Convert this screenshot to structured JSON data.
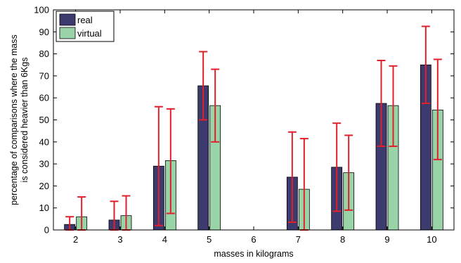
{
  "chart_data": {
    "type": "bar",
    "title": "",
    "xlabel": "masses in kilograms",
    "ylabel_lines": [
      "percentage of comparisons where the mass",
      "is considered heavier than 6Kgs"
    ],
    "categories": [
      "2",
      "3",
      "4",
      "5",
      "6",
      "7",
      "8",
      "9",
      "10"
    ],
    "ylim": [
      0,
      100
    ],
    "yticks": [
      0,
      10,
      20,
      30,
      40,
      50,
      60,
      70,
      80,
      90,
      100
    ],
    "grid": false,
    "legend_position": "top-left",
    "series": [
      {
        "name": "real",
        "color": "#3d3a6e",
        "values": [
          2.5,
          4.5,
          29,
          65.5,
          null,
          24,
          28.5,
          57.5,
          75
        ],
        "error_low": [
          0,
          0,
          2,
          50,
          null,
          3.5,
          8.5,
          38,
          57.5
        ],
        "error_high": [
          6,
          13,
          56,
          81,
          null,
          44.5,
          48.5,
          77,
          92.5
        ]
      },
      {
        "name": "virtual",
        "color": "#99d3a8",
        "values": [
          6,
          6.5,
          31.5,
          56.5,
          null,
          18.5,
          26,
          56.5,
          54.5
        ],
        "error_low": [
          0,
          0,
          7.5,
          40,
          null,
          0,
          9,
          38,
          32
        ],
        "error_high": [
          15,
          15.5,
          55,
          73,
          null,
          41.5,
          43,
          74.5,
          77.5
        ]
      }
    ],
    "error_bar_color": "#e0202a"
  }
}
